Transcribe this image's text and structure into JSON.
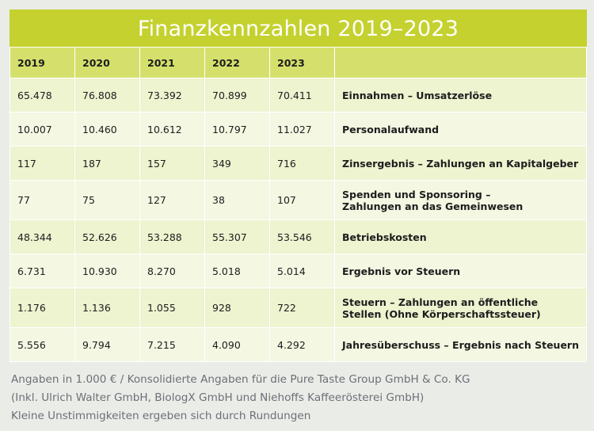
{
  "title": "Finanzkennzahlen 2019–2023",
  "headers": [
    "2019",
    "2020",
    "2021",
    "2022",
    "2023",
    ""
  ],
  "rows": [
    {
      "values": [
        "65.478",
        "76.808",
        "73.392",
        "70.899",
        "70.411"
      ],
      "label": [
        "Einnahmen – Umsatzerlöse"
      ]
    },
    {
      "values": [
        "10.007",
        "10.460",
        "10.612",
        "10.797",
        "11.027"
      ],
      "label": [
        "Personalaufwand"
      ]
    },
    {
      "values": [
        "117",
        "187",
        "157",
        "349",
        "716"
      ],
      "label": [
        "Zinsergebnis – Zahlungen an Kapitalgeber"
      ]
    },
    {
      "values": [
        "77",
        "75",
        "127",
        "38",
        "107"
      ],
      "label": [
        "Spenden und Sponsoring –",
        "Zahlungen an das Gemeinwesen"
      ]
    },
    {
      "values": [
        "48.344",
        "52.626",
        "53.288",
        "55.307",
        "53.546"
      ],
      "label": [
        "Betriebskosten"
      ]
    },
    {
      "values": [
        "6.731",
        "10.930",
        "8.270",
        "5.018",
        "5.014"
      ],
      "label": [
        "Ergebnis vor Steuern"
      ]
    },
    {
      "values": [
        "1.176",
        "1.136",
        "1.055",
        "928",
        "722"
      ],
      "label": [
        "Steuern – Zahlungen an öffentliche",
        "Stellen (Ohne Körperschaftssteuer)"
      ]
    },
    {
      "values": [
        "5.556",
        "9.794",
        "7.215",
        "4.090",
        "4.292"
      ],
      "label": [
        "Jahresüberschuss – Ergebnis nach Steuern"
      ]
    }
  ],
  "footer": [
    "Angaben in 1.000 € / Konsolidierte Angaben für die Pure Taste Group GmbH & Co. KG",
    "(Inkl. Ulrich Walter GmbH, BiologX GmbH und Niehoffs Kaffeerösterei GmbH)",
    "Kleine Unstimmigkeiten ergeben sich durch Rundungen"
  ],
  "colors": {
    "title_bg": "#c4d12e",
    "header_bg": "#d5e06c",
    "page_bg": "#eaece7",
    "footer_text": "#6c6f78"
  }
}
